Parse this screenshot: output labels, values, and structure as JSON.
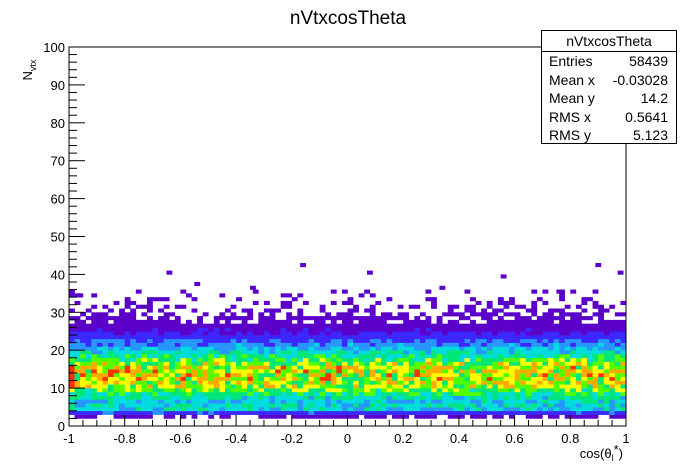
{
  "title": "nVtxcosTheta",
  "stats": {
    "name": "nVtxcosTheta",
    "rows": [
      {
        "label": "Entries",
        "value": "58439"
      },
      {
        "label": "Mean x",
        "value": "-0.03028"
      },
      {
        "label": "Mean y",
        "value": "14.2"
      },
      {
        "label": "RMS x",
        "value": "0.5641"
      },
      {
        "label": "RMS y",
        "value": "5.123"
      }
    ]
  },
  "chart_data": {
    "type": "heatmap",
    "title": "nVtxcosTheta",
    "xlabel": "cos(θ_l*)",
    "ylabel": "N_vtx",
    "xlim": [
      -1,
      1
    ],
    "ylim": [
      0,
      100
    ],
    "x_ticks": [
      "-1",
      "-0.8",
      "-0.6",
      "-0.4",
      "-0.2",
      "0",
      "0.2",
      "0.4",
      "0.6",
      "0.8",
      "1"
    ],
    "x_tick_values": [
      -1,
      -0.8,
      -0.6,
      -0.4,
      -0.2,
      0,
      0.2,
      0.4,
      0.6,
      0.8,
      1
    ],
    "y_ticks": [
      "0",
      "10",
      "20",
      "30",
      "40",
      "50",
      "60",
      "70",
      "80",
      "90",
      "100"
    ],
    "y_tick_values": [
      0,
      10,
      20,
      30,
      40,
      50,
      60,
      70,
      80,
      90,
      100
    ],
    "x_bins": 100,
    "y_bins": 100,
    "entries": 58439,
    "mean_x": -0.03028,
    "mean_y": 14.2,
    "rms_x": 0.5641,
    "rms_y": 5.123,
    "nvtx_profile": [
      {
        "nvtx": 2,
        "relative_density": 0.04
      },
      {
        "nvtx": 3,
        "relative_density": 0.18
      },
      {
        "nvtx": 4,
        "relative_density": 0.38
      },
      {
        "nvtx": 5,
        "relative_density": 0.4
      },
      {
        "nvtx": 6,
        "relative_density": 0.36
      },
      {
        "nvtx": 7,
        "relative_density": 0.42
      },
      {
        "nvtx": 8,
        "relative_density": 0.52
      },
      {
        "nvtx": 9,
        "relative_density": 0.6
      },
      {
        "nvtx": 10,
        "relative_density": 0.66
      },
      {
        "nvtx": 11,
        "relative_density": 0.7
      },
      {
        "nvtx": 12,
        "relative_density": 0.72
      },
      {
        "nvtx": 13,
        "relative_density": 0.73
      },
      {
        "nvtx": 14,
        "relative_density": 0.72
      },
      {
        "nvtx": 15,
        "relative_density": 0.7
      },
      {
        "nvtx": 16,
        "relative_density": 0.64
      },
      {
        "nvtx": 17,
        "relative_density": 0.56
      },
      {
        "nvtx": 18,
        "relative_density": 0.48
      },
      {
        "nvtx": 19,
        "relative_density": 0.4
      },
      {
        "nvtx": 20,
        "relative_density": 0.33
      },
      {
        "nvtx": 21,
        "relative_density": 0.27
      },
      {
        "nvtx": 22,
        "relative_density": 0.21
      },
      {
        "nvtx": 23,
        "relative_density": 0.16
      },
      {
        "nvtx": 24,
        "relative_density": 0.12
      },
      {
        "nvtx": 25,
        "relative_density": 0.09
      },
      {
        "nvtx": 26,
        "relative_density": 0.065
      },
      {
        "nvtx": 27,
        "relative_density": 0.045
      },
      {
        "nvtx": 28,
        "relative_density": 0.03
      },
      {
        "nvtx": 29,
        "relative_density": 0.02
      },
      {
        "nvtx": 30,
        "relative_density": 0.014
      },
      {
        "nvtx": 31,
        "relative_density": 0.01
      },
      {
        "nvtx": 32,
        "relative_density": 0.007
      },
      {
        "nvtx": 33,
        "relative_density": 0.004
      },
      {
        "nvtx": 34,
        "relative_density": 0.002
      },
      {
        "nvtx": 35,
        "relative_density": 0.001
      }
    ],
    "outlier_cells": [
      {
        "x": -0.17,
        "y": 42
      },
      {
        "x": -0.65,
        "y": 40
      },
      {
        "x": 0.07,
        "y": 40
      },
      {
        "x": 0.89,
        "y": 42
      },
      {
        "x": 0.97,
        "y": 40
      },
      {
        "x": 0.55,
        "y": 39
      },
      {
        "x": -0.97,
        "y": 34
      },
      {
        "x": -0.35,
        "y": 36
      },
      {
        "x": 0.33,
        "y": 36
      },
      {
        "x": -0.55,
        "y": 37
      },
      {
        "x": 0.75,
        "y": 35
      }
    ],
    "color_scale": [
      "#5a00c8",
      "#3c28ff",
      "#2896ff",
      "#00dcdc",
      "#00e678",
      "#50ff00",
      "#ffff00",
      "#ffaa00",
      "#ff3200"
    ]
  }
}
